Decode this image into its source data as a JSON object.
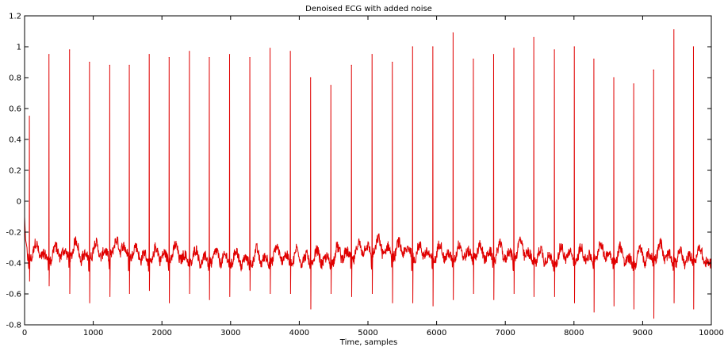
{
  "chart_data": {
    "type": "line",
    "title": "Denoised ECG with added noise",
    "xlabel": "Time, samples",
    "ylabel": "",
    "xlim": [
      0,
      10000
    ],
    "ylim": [
      -0.8,
      1.2
    ],
    "x_ticks": [
      0,
      1000,
      2000,
      3000,
      4000,
      5000,
      6000,
      7000,
      8000,
      9000,
      10000
    ],
    "y_ticks": [
      -0.8,
      -0.6,
      -0.4,
      -0.2,
      0,
      0.2,
      0.4,
      0.6,
      0.8,
      1,
      1.2
    ],
    "x_tick_labels": [
      "0",
      "1000",
      "2000",
      "3000",
      "4000",
      "5000",
      "6000",
      "7000",
      "8000",
      "9000",
      "10000"
    ],
    "y_tick_labels": [
      "-0.8",
      "-0.6",
      "-0.4",
      "-0.2",
      "0",
      "0.2",
      "0.4",
      "0.6",
      "0.8",
      "1",
      "1.2"
    ],
    "grid": false,
    "line_color": "#e00000",
    "baseline": -0.38,
    "series": [
      {
        "peaks": [
          {
            "x": 70,
            "y": 0.55,
            "min": -0.52
          },
          {
            "x": 355,
            "y": 0.95,
            "min": -0.55
          },
          {
            "x": 655,
            "y": 0.98,
            "min": -0.6
          },
          {
            "x": 945,
            "y": 0.9,
            "min": -0.66
          },
          {
            "x": 1240,
            "y": 0.88,
            "min": -0.62
          },
          {
            "x": 1525,
            "y": 0.88,
            "min": -0.6
          },
          {
            "x": 1815,
            "y": 0.95,
            "min": -0.58
          },
          {
            "x": 2105,
            "y": 0.93,
            "min": -0.66
          },
          {
            "x": 2400,
            "y": 0.97,
            "min": -0.6
          },
          {
            "x": 2690,
            "y": 0.93,
            "min": -0.64
          },
          {
            "x": 2985,
            "y": 0.95,
            "min": -0.62
          },
          {
            "x": 3280,
            "y": 0.93,
            "min": -0.58
          },
          {
            "x": 3575,
            "y": 0.99,
            "min": -0.6
          },
          {
            "x": 3870,
            "y": 0.97,
            "min": -0.6
          },
          {
            "x": 4165,
            "y": 0.8,
            "min": -0.7
          },
          {
            "x": 4460,
            "y": 0.75,
            "min": -0.6
          },
          {
            "x": 4760,
            "y": 0.88,
            "min": -0.62
          },
          {
            "x": 5060,
            "y": 0.95,
            "min": -0.6
          },
          {
            "x": 5355,
            "y": 0.9,
            "min": -0.66
          },
          {
            "x": 5650,
            "y": 1.0,
            "min": -0.66
          },
          {
            "x": 5945,
            "y": 1.0,
            "min": -0.68
          },
          {
            "x": 6240,
            "y": 1.09,
            "min": -0.64
          },
          {
            "x": 6535,
            "y": 0.92,
            "min": -0.6
          },
          {
            "x": 6830,
            "y": 0.95,
            "min": -0.64
          },
          {
            "x": 7125,
            "y": 0.99,
            "min": -0.6
          },
          {
            "x": 7415,
            "y": 1.06,
            "min": -0.62
          },
          {
            "x": 7715,
            "y": 0.98,
            "min": -0.62
          },
          {
            "x": 8005,
            "y": 1.0,
            "min": -0.66
          },
          {
            "x": 8290,
            "y": 0.92,
            "min": -0.72
          },
          {
            "x": 8580,
            "y": 0.8,
            "min": -0.68
          },
          {
            "x": 8870,
            "y": 0.76,
            "min": -0.7
          },
          {
            "x": 9160,
            "y": 0.85,
            "min": -0.76
          },
          {
            "x": 9455,
            "y": 1.11,
            "min": -0.66
          },
          {
            "x": 9740,
            "y": 1.0,
            "min": -0.7
          }
        ]
      }
    ]
  }
}
